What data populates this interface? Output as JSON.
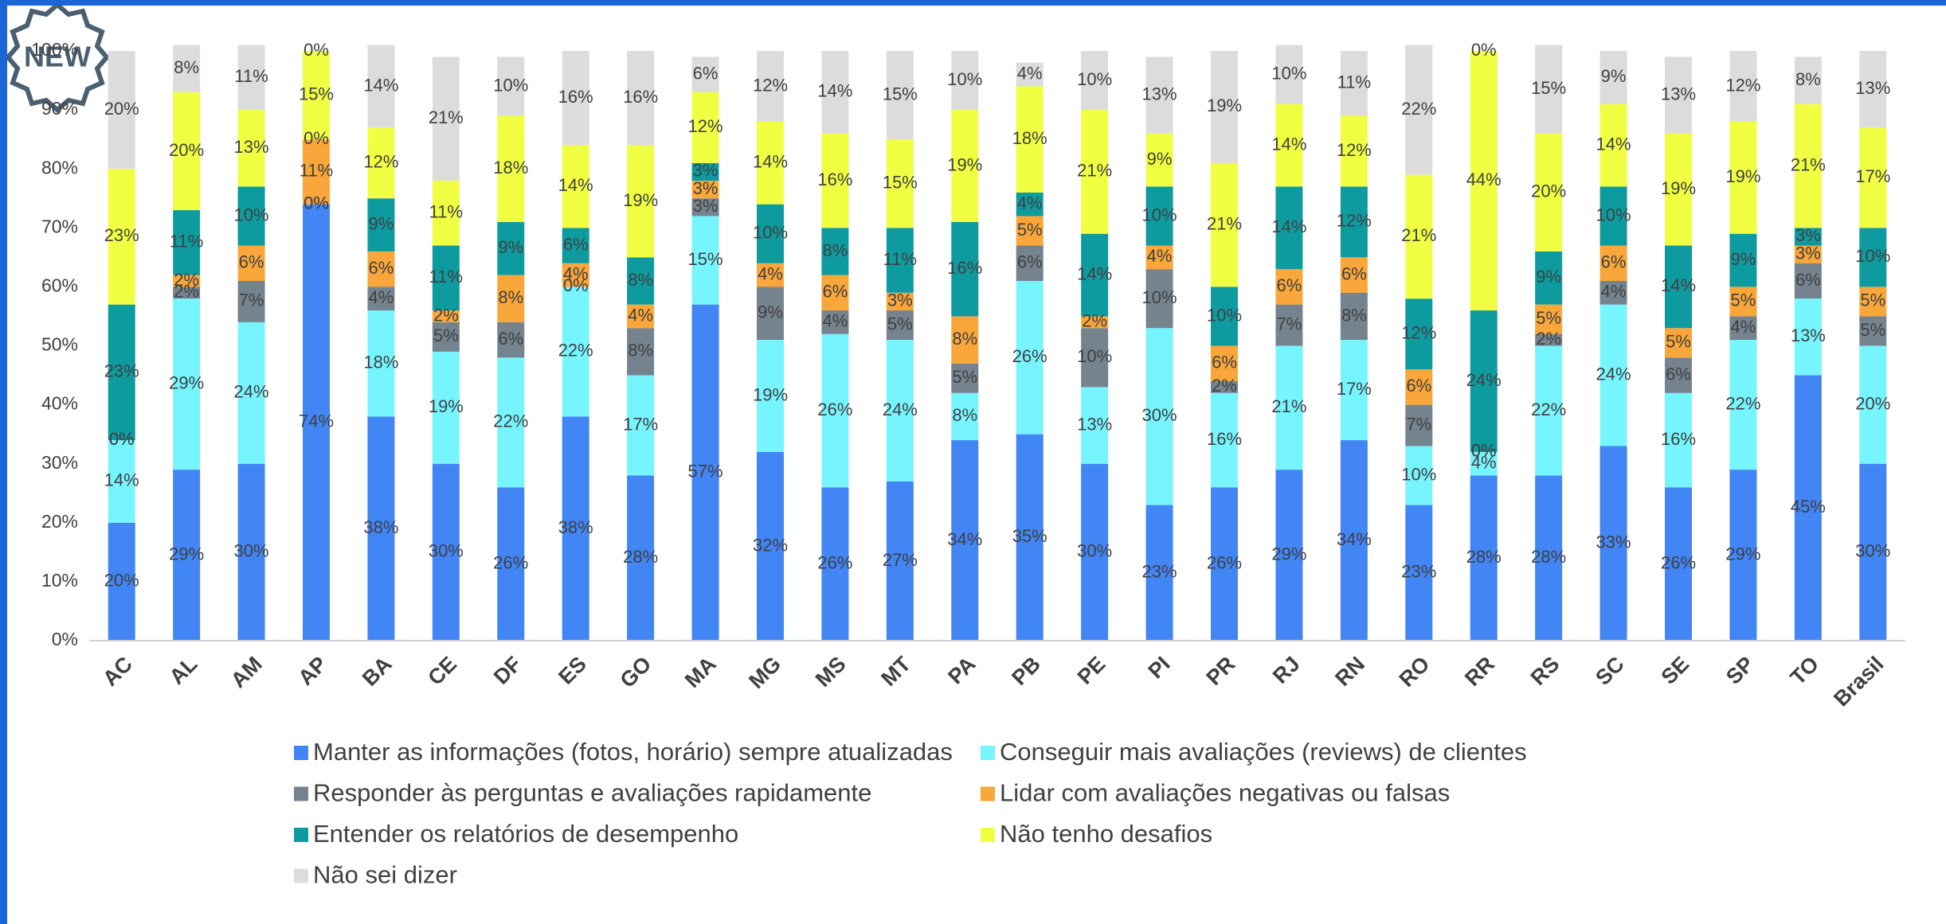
{
  "badge": "NEW",
  "chart_data": {
    "type": "stacked_bar",
    "categories": [
      "AC",
      "AL",
      "AM",
      "AP",
      "BA",
      "CE",
      "DF",
      "ES",
      "GO",
      "MA",
      "MG",
      "MS",
      "MT",
      "PA",
      "PB",
      "PE",
      "PI",
      "PR",
      "RJ",
      "RN",
      "RO",
      "RR",
      "RS",
      "SC",
      "SE",
      "SP",
      "TO",
      "Brasil"
    ],
    "ylim": [
      0,
      100
    ],
    "yticks": [
      {
        "value": 0,
        "label": "0%"
      },
      {
        "value": 10,
        "label": "10%"
      },
      {
        "value": 20,
        "label": "20%"
      },
      {
        "value": 30,
        "label": "30%"
      },
      {
        "value": 40,
        "label": "40%"
      },
      {
        "value": 50,
        "label": "50%"
      },
      {
        "value": 60,
        "label": "60%"
      },
      {
        "value": 70,
        "label": "70%"
      },
      {
        "value": 80,
        "label": "80%"
      },
      {
        "value": 90,
        "label": "90%"
      },
      {
        "value": 100,
        "label": "100%"
      }
    ],
    "grid": false,
    "series": [
      {
        "name": "Manter as informações (fotos, horário) sempre atualizadas",
        "color": "#4285f4",
        "values": [
          20,
          29,
          30,
          74,
          38,
          30,
          26,
          38,
          28,
          57,
          32,
          26,
          27,
          34,
          35,
          30,
          23,
          26,
          29,
          34,
          23,
          28,
          28,
          33,
          26,
          29,
          45,
          30
        ],
        "value_labels": [
          "20%",
          "29%",
          "30%",
          "74%",
          "38%",
          "30%",
          "26%",
          "38%",
          "28%",
          "57%",
          "32%",
          "26%",
          "27%",
          "34%",
          "35%",
          "30%",
          "23%",
          "26%",
          "29%",
          "34%",
          "23%",
          "28%",
          "28%",
          "33%",
          "26%",
          "29%",
          "45%",
          "30%"
        ]
      },
      {
        "name": "Conseguir mais avaliações (reviews) de clientes",
        "color": "#77f5ff",
        "values": [
          14,
          29,
          24,
          0,
          18,
          19,
          22,
          22,
          17,
          15,
          19,
          26,
          24,
          8,
          26,
          13,
          30,
          16,
          21,
          17,
          10,
          4,
          22,
          24,
          16,
          22,
          13,
          20
        ],
        "value_labels": [
          "14%",
          "29%",
          "24%",
          "0%",
          "18%",
          "19%",
          "22%",
          "22%",
          "17%",
          "15%",
          "19%",
          "26%",
          "24%",
          "8%",
          "26%",
          "13%",
          "30%",
          "16%",
          "21%",
          "17%",
          "10%",
          "4%",
          "22%",
          "24%",
          "16%",
          "22%",
          "13%",
          "20%"
        ]
      },
      {
        "name": "Responder às perguntas e avaliações rapidamente",
        "color": "#75838f",
        "values": [
          0,
          2,
          7,
          0,
          4,
          5,
          6,
          0,
          8,
          3,
          9,
          4,
          5,
          5,
          6,
          10,
          10,
          2,
          7,
          8,
          7,
          0,
          2,
          4,
          6,
          4,
          6,
          5
        ],
        "value_labels": [
          "0%",
          "2%",
          "7%",
          "0%",
          "4%",
          "5%",
          "6%",
          "0%",
          "8%",
          "3%",
          "9%",
          "4%",
          "5%",
          "5%",
          "6%",
          "10%",
          "10%",
          "2%",
          "7%",
          "8%",
          "7%",
          "0%",
          "2%",
          "4%",
          "6%",
          "4%",
          "6%",
          "5%"
        ]
      },
      {
        "name": "Lidar com avaliações negativas ou falsas",
        "color": "#f9a63a",
        "values": [
          0,
          2,
          6,
          11,
          6,
          2,
          8,
          4,
          4,
          3,
          4,
          6,
          3,
          8,
          5,
          2,
          4,
          6,
          6,
          6,
          6,
          0,
          5,
          6,
          5,
          5,
          3,
          5
        ],
        "value_labels": [
          "0%",
          "2%",
          "6%",
          "11%",
          "6%",
          "2%",
          "8%",
          "4%",
          "4%",
          "3%",
          "4%",
          "6%",
          "3%",
          "8%",
          "5%",
          "2%",
          "4%",
          "6%",
          "6%",
          "6%",
          "6%",
          "0%",
          "5%",
          "6%",
          "5%",
          "5%",
          "3%",
          "5%"
        ]
      },
      {
        "name": "Entender os relatórios de desempenho",
        "color": "#0e9b9f",
        "values": [
          23,
          11,
          10,
          0,
          9,
          11,
          9,
          6,
          8,
          3,
          10,
          8,
          11,
          16,
          4,
          14,
          10,
          10,
          14,
          12,
          12,
          24,
          9,
          10,
          14,
          9,
          3,
          10
        ],
        "value_labels": [
          "23%",
          "11%",
          "10%",
          "0%",
          "9%",
          "11%",
          "9%",
          "6%",
          "8%",
          "3%",
          "10%",
          "8%",
          "11%",
          "16%",
          "4%",
          "14%",
          "10%",
          "10%",
          "14%",
          "12%",
          "12%",
          "24%",
          "9%",
          "10%",
          "14%",
          "9%",
          "3%",
          "10%"
        ]
      },
      {
        "name": "Não tenho desafios",
        "color": "#f0ff42",
        "values": [
          23,
          20,
          13,
          15,
          12,
          11,
          18,
          14,
          19,
          12,
          14,
          16,
          15,
          19,
          18,
          21,
          9,
          21,
          14,
          12,
          21,
          44,
          20,
          14,
          19,
          19,
          21,
          17
        ],
        "value_labels": [
          "23%",
          "20%",
          "13%",
          "15%",
          "12%",
          "11%",
          "18%",
          "14%",
          "19%",
          "12%",
          "14%",
          "16%",
          "15%",
          "19%",
          "18%",
          "21%",
          "9%",
          "21%",
          "14%",
          "12%",
          "21%",
          "44%",
          "20%",
          "14%",
          "19%",
          "19%",
          "21%",
          "17%"
        ]
      },
      {
        "name": "Não sei dizer",
        "color": "#dcdcdc",
        "values": [
          20,
          8,
          11,
          0,
          14,
          21,
          10,
          16,
          16,
          6,
          12,
          14,
          15,
          10,
          4,
          10,
          13,
          19,
          10,
          11,
          22,
          0,
          15,
          9,
          13,
          12,
          8,
          13
        ],
        "value_labels": [
          "20%",
          "8%",
          "11%",
          "0%",
          "14%",
          "21%",
          "10%",
          "16%",
          "16%",
          "6%",
          "12%",
          "14%",
          "15%",
          "10%",
          "4%",
          "10%",
          "13%",
          "19%",
          "10%",
          "11%",
          "22%",
          "0%",
          "15%",
          "9%",
          "13%",
          "12%",
          "8%",
          "13%"
        ]
      }
    ]
  }
}
